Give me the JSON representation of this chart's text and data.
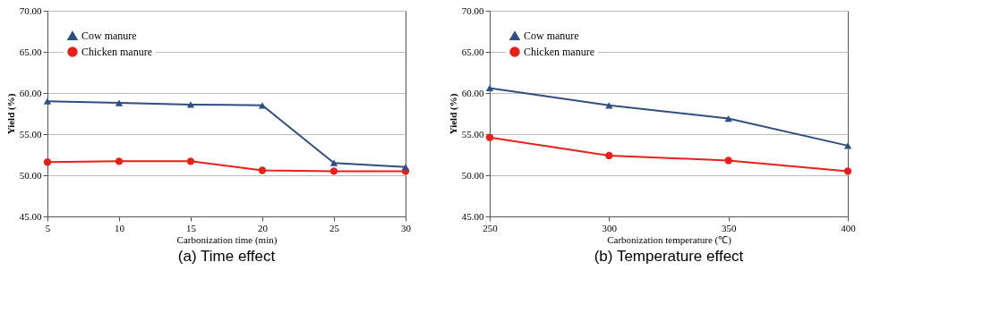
{
  "chart_data": [
    {
      "type": "line",
      "title": "(a) Time effect",
      "xlabel": "Carbonization time (min)",
      "ylabel": "Yield (%)",
      "x": [
        5,
        10,
        15,
        20,
        25,
        30
      ],
      "series": [
        {
          "name": "Cow manure",
          "color": "#2e4f7f",
          "marker": "triangle",
          "values": [
            59.0,
            58.8,
            58.6,
            58.5,
            51.5,
            51.0
          ]
        },
        {
          "name": "Chicken manure",
          "color": "#e8201a",
          "marker": "circle",
          "values": [
            51.6,
            51.7,
            51.7,
            50.6,
            50.5,
            50.5
          ]
        }
      ],
      "xlim": [
        5,
        30
      ],
      "xticks": [
        5,
        10,
        15,
        20,
        25,
        30
      ],
      "ylim": [
        45,
        70
      ],
      "yticks": [
        {
          "value": 45,
          "label": "45.00"
        },
        {
          "value": 50,
          "label": "50.00"
        },
        {
          "value": 55,
          "label": "55.00"
        },
        {
          "value": 60,
          "label": "60.00"
        },
        {
          "value": 65,
          "label": "65.00"
        },
        {
          "value": 70,
          "label": "70.00"
        }
      ],
      "grid": "y",
      "legend": "top left",
      "line_style": "solid"
    },
    {
      "type": "line",
      "title": "(b) Temperature effect",
      "xlabel": "Carbonization temperature (℃)",
      "ylabel": "Yield (%)",
      "x": [
        250,
        300,
        350,
        400
      ],
      "series": [
        {
          "name": "Cow manure",
          "color": "#2e4f7f",
          "marker": "triangle",
          "values": [
            60.6,
            58.5,
            56.9,
            53.6
          ]
        },
        {
          "name": "Chicken manure",
          "color": "#e8201a",
          "marker": "circle",
          "values": [
            54.6,
            52.4,
            51.8,
            50.5
          ]
        }
      ],
      "xlim": [
        250,
        400
      ],
      "xticks": [
        250,
        300,
        350,
        400
      ],
      "ylim": [
        45,
        70
      ],
      "yticks": [
        {
          "value": 45,
          "label": "45.00"
        },
        {
          "value": 50,
          "label": "50.00"
        },
        {
          "value": 55,
          "label": "55.00"
        },
        {
          "value": 60,
          "label": "60.00"
        },
        {
          "value": 65,
          "label": "65.00"
        },
        {
          "value": 70,
          "label": "70.00"
        }
      ],
      "grid": "y",
      "legend": "top left",
      "line_style": "solid"
    }
  ]
}
